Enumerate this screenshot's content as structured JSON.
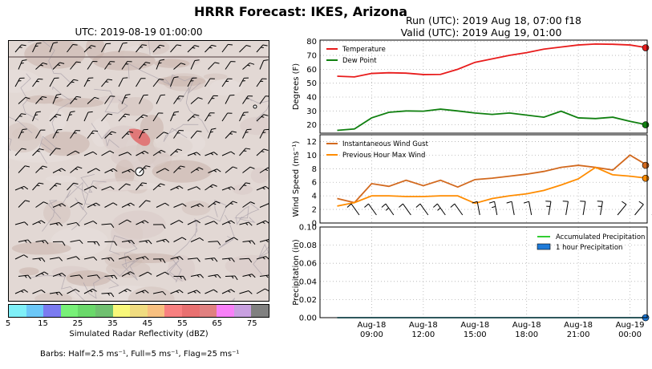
{
  "header": {
    "title": "HRRR Forecast: IKES, Arizona",
    "map_title": "UTC: 2019-08-19 01:00:00",
    "run_line": "Run (UTC): 2019 Aug 18, 07:00 f18",
    "valid_line": "Valid (UTC): 2019 Aug 19, 01:00"
  },
  "map": {
    "colorbar": {
      "label": "Simulated Radar Reflectivity (dBZ)",
      "ticks": [
        "5",
        "15",
        "25",
        "35",
        "45",
        "55",
        "65",
        "75"
      ],
      "colors": [
        "#7ff0f8",
        "#6cc8f8",
        "#7b7bf0",
        "#78f078",
        "#6ad86a",
        "#70c070",
        "#f8f87a",
        "#f0dc80",
        "#f8c080",
        "#f88080",
        "#e87070",
        "#e08080",
        "#f880f8",
        "#c8a0e0",
        "#808080"
      ]
    },
    "barbs_note": "Barbs: Half=2.5 ms⁻¹, Full=5 ms⁻¹, Flag=25 ms⁻¹"
  },
  "chart_data": [
    {
      "type": "line",
      "ylabel": "Degrees (F)",
      "ylim": [
        14,
        81
      ],
      "yticks": [
        20,
        30,
        40,
        50,
        60,
        70,
        80
      ],
      "x_hours": [
        7,
        8,
        9,
        10,
        11,
        12,
        13,
        14,
        15,
        16,
        17,
        18,
        19,
        20,
        21,
        22,
        23,
        24,
        25
      ],
      "series": [
        {
          "name": "Temperature",
          "color": "#e81c1c",
          "values": [
            55,
            54.5,
            57,
            57.5,
            57.2,
            56.2,
            56.3,
            60,
            65,
            67.5,
            70,
            72,
            74.5,
            76,
            77.5,
            78.2,
            78,
            77.5,
            75.5
          ]
        },
        {
          "name": "Dew Point",
          "color": "#108010",
          "values": [
            16,
            17,
            25,
            29,
            30,
            29.8,
            31.3,
            30,
            28.5,
            27.5,
            28.5,
            27,
            25.5,
            29.8,
            25,
            24.5,
            25.5,
            22.5,
            20
          ]
        }
      ],
      "legend": "top-left"
    },
    {
      "type": "line",
      "ylabel": "Wind Speed (ms⁻¹)",
      "ylim": [
        0,
        13
      ],
      "yticks": [
        0,
        2,
        4,
        6,
        8,
        10,
        12
      ],
      "x_hours": [
        7,
        8,
        9,
        10,
        11,
        12,
        13,
        14,
        15,
        16,
        17,
        18,
        19,
        20,
        21,
        22,
        23,
        24,
        25
      ],
      "series": [
        {
          "name": "Instantaneous Wind Gust",
          "color": "#d2691e",
          "values": [
            3.6,
            3,
            5.8,
            5.4,
            6.3,
            5.5,
            6.3,
            5.3,
            6.4,
            6.6,
            6.9,
            7.2,
            7.6,
            8.2,
            8.5,
            8.2,
            7.8,
            10,
            8.5
          ]
        },
        {
          "name": "Previous Hour Max Wind",
          "color": "#ff8c00",
          "values": [
            2.5,
            3,
            4,
            4,
            3.9,
            3.9,
            4,
            4,
            2.9,
            3.6,
            4,
            4.3,
            4.8,
            5.6,
            6.5,
            8.2,
            7.1,
            6.9,
            6.6
          ]
        }
      ],
      "legend": "top-left"
    },
    {
      "type": "line",
      "ylabel": "Precipitation (in)",
      "ylim": [
        0,
        0.1
      ],
      "yticks": [
        "0.00",
        "0.02",
        "0.04",
        "0.06",
        "0.08",
        "0.10"
      ],
      "x_hours": [
        7,
        8,
        9,
        10,
        11,
        12,
        13,
        14,
        15,
        16,
        17,
        18,
        19,
        20,
        21,
        22,
        23,
        24,
        25
      ],
      "series": [
        {
          "name": "Accumulated Precipitation",
          "color": "#32cd32",
          "values": [
            0,
            0,
            0,
            0,
            0,
            0,
            0,
            0,
            0,
            0,
            0,
            0,
            0,
            0,
            0,
            0,
            0,
            0,
            0
          ]
        },
        {
          "name": "1 hour Precipitation",
          "color": "#1e7ad8",
          "values": [
            0,
            0,
            0,
            0,
            0,
            0,
            0,
            0,
            0,
            0,
            0,
            0,
            0,
            0,
            0,
            0,
            0,
            0,
            0
          ]
        }
      ],
      "legend": "top-right"
    }
  ],
  "xaxis": {
    "tick_hours": [
      9,
      12,
      15,
      18,
      21,
      24
    ],
    "tick_labels": [
      [
        "Aug-18",
        "09:00"
      ],
      [
        "Aug-18",
        "12:00"
      ],
      [
        "Aug-18",
        "15:00"
      ],
      [
        "Aug-18",
        "18:00"
      ],
      [
        "Aug-18",
        "21:00"
      ],
      [
        "Aug-19",
        "00:00"
      ]
    ]
  }
}
